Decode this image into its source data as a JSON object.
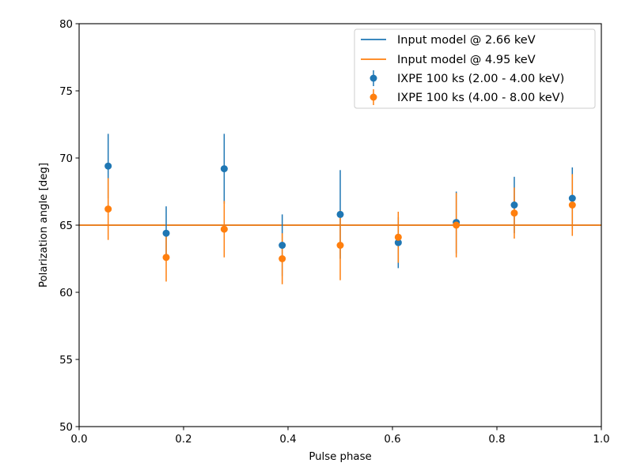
{
  "chart_data": {
    "type": "scatter",
    "xlabel": "Pulse phase",
    "ylabel": "Polarization angle [deg]",
    "xlim": [
      0.0,
      1.0
    ],
    "ylim": [
      50,
      80
    ],
    "xticks": [
      "0.0",
      "0.2",
      "0.4",
      "0.6",
      "0.8",
      "1.0"
    ],
    "yticks": [
      "50",
      "55",
      "60",
      "65",
      "70",
      "75",
      "80"
    ],
    "grid": false,
    "legend_position": "top-right",
    "lines": [
      {
        "name": "Input model @ 2.66 keV",
        "y": 65.0,
        "color": "#1f77b4"
      },
      {
        "name": "Input model @ 4.95 keV",
        "y": 65.0,
        "color": "#ff7f0e"
      }
    ],
    "series": [
      {
        "name": "IXPE 100 ks (2.00 - 4.00 keV)",
        "color": "#1f77b4",
        "x": [
          0.0556,
          0.1667,
          0.2778,
          0.3889,
          0.5,
          0.6111,
          0.7222,
          0.8333,
          0.9444
        ],
        "y": [
          69.4,
          64.4,
          69.2,
          63.5,
          65.8,
          63.7,
          65.2,
          66.5,
          67.0
        ],
        "yerr": [
          2.4,
          2.0,
          2.6,
          2.3,
          3.3,
          1.9,
          2.3,
          2.1,
          2.3
        ]
      },
      {
        "name": "IXPE 100 ks (4.00 - 8.00 keV)",
        "color": "#ff7f0e",
        "x": [
          0.0556,
          0.1667,
          0.2778,
          0.3889,
          0.5,
          0.6111,
          0.7222,
          0.8333,
          0.9444
        ],
        "y": [
          66.2,
          62.6,
          64.7,
          62.5,
          63.5,
          64.1,
          65.0,
          65.9,
          66.5
        ],
        "yerr": [
          2.3,
          1.8,
          2.1,
          1.9,
          2.6,
          1.9,
          2.4,
          1.9,
          2.3
        ]
      }
    ]
  }
}
